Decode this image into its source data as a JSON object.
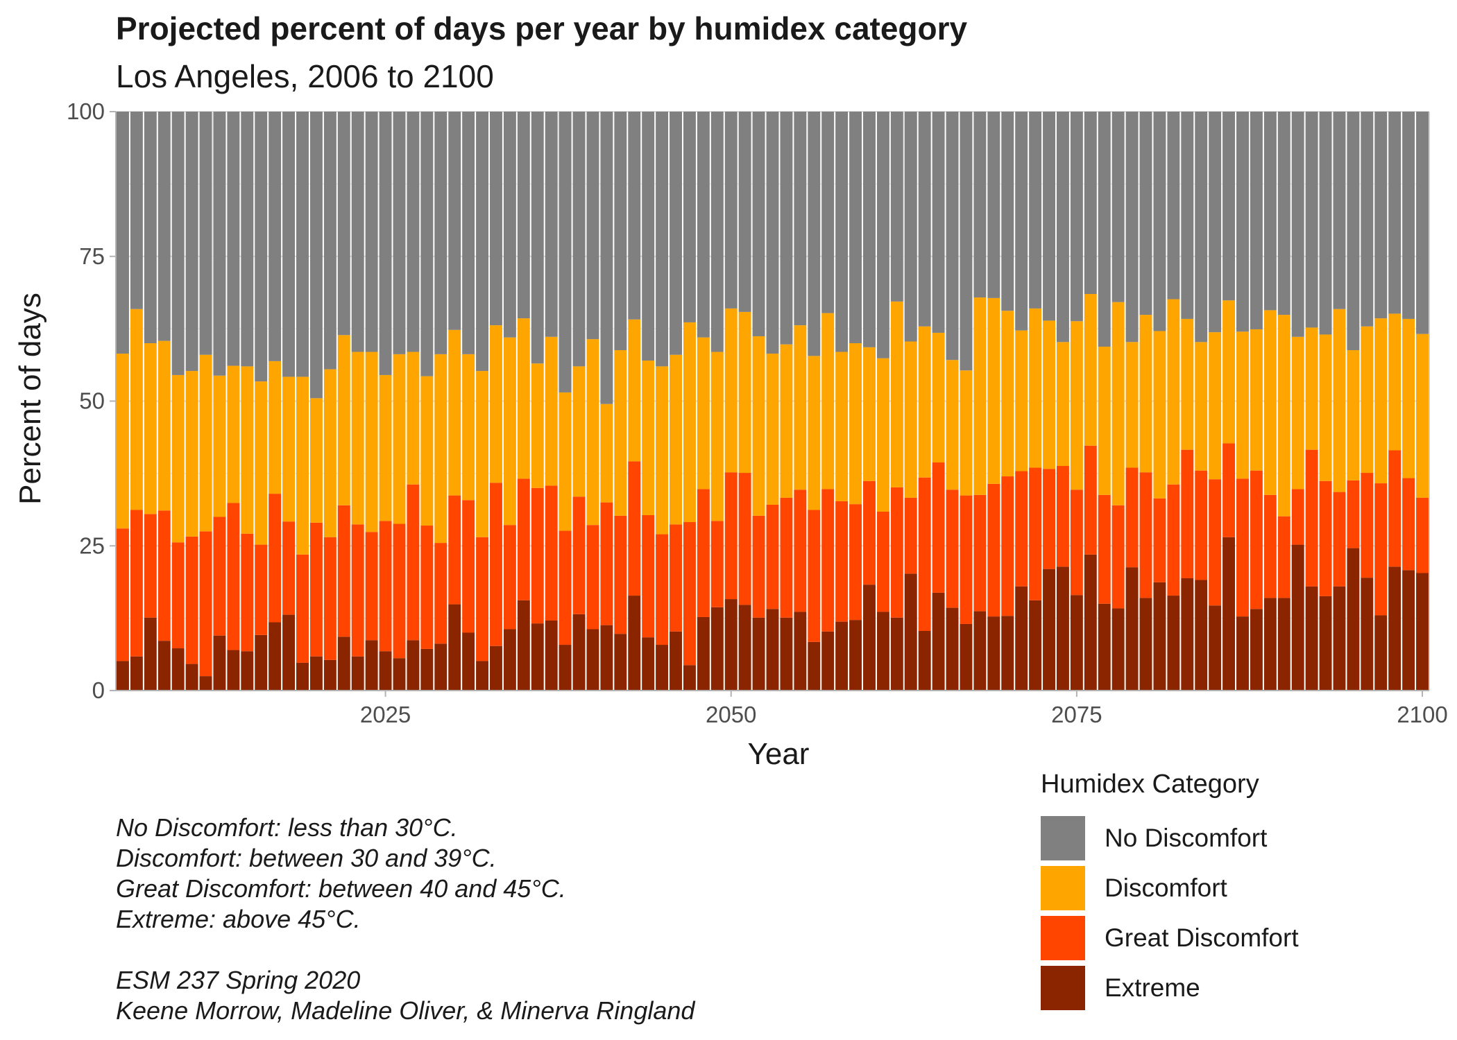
{
  "title": "Projected percent of days per year by humidex category",
  "subtitle": "Los Angeles, 2006 to 2100",
  "caption_lines": [
    "No Discomfort: less than 30°C.",
    "Discomfort: between 30 and 39°C.",
    "Great Discomfort: between 40 and 45°C.",
    "Extreme: above 45°C.",
    "",
    "ESM 237 Spring 2020",
    "Keene Morrow, Madeline Oliver, & Minerva Ringland"
  ],
  "legend": {
    "title": "Humidex Category",
    "items": [
      {
        "label": "No Discomfort",
        "color": "#808080"
      },
      {
        "label": "Discomfort",
        "color": "#ffa500"
      },
      {
        "label": "Great Discomfort",
        "color": "#ff4500"
      },
      {
        "label": "Extreme",
        "color": "#8b2500"
      }
    ]
  },
  "chart_data": {
    "type": "bar",
    "stacked": true,
    "title": "Projected percent of days per year by humidex category",
    "subtitle": "Los Angeles, 2006 to 2100",
    "xlabel": "Year",
    "ylabel": "Percent of days",
    "xlim": [
      2006,
      2100
    ],
    "ylim": [
      0,
      100
    ],
    "x_ticks": [
      2025,
      2050,
      2075,
      2100
    ],
    "y_ticks": [
      0,
      25,
      50,
      75,
      100
    ],
    "grid": true,
    "legend_position": "bottom-right",
    "x": [
      2006,
      2007,
      2008,
      2009,
      2010,
      2011,
      2012,
      2013,
      2014,
      2015,
      2016,
      2017,
      2018,
      2019,
      2020,
      2021,
      2022,
      2023,
      2024,
      2025,
      2026,
      2027,
      2028,
      2029,
      2030,
      2031,
      2032,
      2033,
      2034,
      2035,
      2036,
      2037,
      2038,
      2039,
      2040,
      2041,
      2042,
      2043,
      2044,
      2045,
      2046,
      2047,
      2048,
      2049,
      2050,
      2051,
      2052,
      2053,
      2054,
      2055,
      2056,
      2057,
      2058,
      2059,
      2060,
      2061,
      2062,
      2063,
      2064,
      2065,
      2066,
      2067,
      2068,
      2069,
      2070,
      2071,
      2072,
      2073,
      2074,
      2075,
      2076,
      2077,
      2078,
      2079,
      2080,
      2081,
      2082,
      2083,
      2084,
      2085,
      2086,
      2087,
      2088,
      2089,
      2090,
      2091,
      2092,
      2093,
      2094,
      2095,
      2096,
      2097,
      2098,
      2099,
      2100
    ],
    "cumulative_top": {
      "Extreme": [
        5.1,
        5.9,
        12.6,
        8.6,
        7.3,
        4.6,
        2.5,
        9.5,
        7.0,
        6.8,
        9.6,
        11.8,
        13.1,
        4.8,
        5.9,
        5.3,
        9.3,
        5.9,
        8.7,
        6.8,
        5.6,
        8.7,
        7.2,
        8.1,
        14.9,
        10.0,
        5.1,
        7.7,
        10.6,
        15.6,
        11.6,
        12.1,
        7.9,
        13.2,
        10.6,
        11.3,
        9.8,
        16.4,
        9.2,
        7.9,
        10.2,
        4.4,
        12.7,
        14.4,
        15.8,
        14.8,
        12.6,
        14.1,
        12.6,
        13.6,
        8.4,
        10.2,
        11.9,
        12.2,
        18.3,
        13.6,
        12.6,
        20.2,
        10.3,
        16.9,
        14.3,
        11.5,
        13.7,
        12.8,
        12.9,
        18.0,
        15.6,
        21.0,
        21.4,
        16.5,
        23.5,
        15.0,
        14.2,
        21.3,
        16.0,
        18.7,
        16.4,
        19.4,
        19.1,
        14.7,
        26.5,
        12.8,
        14.1,
        16.0,
        16.0,
        25.2,
        18.0,
        16.3,
        18.0,
        24.6,
        19.5,
        13.0,
        21.4,
        20.8,
        20.3
      ],
      "Great Discomfort": [
        28.0,
        31.2,
        30.5,
        31.1,
        25.6,
        26.6,
        27.5,
        30.0,
        32.4,
        27.1,
        25.2,
        34.0,
        29.2,
        23.5,
        29.0,
        26.5,
        32.0,
        28.7,
        27.4,
        29.3,
        28.8,
        35.6,
        28.5,
        25.5,
        33.7,
        32.9,
        26.5,
        35.9,
        28.6,
        36.6,
        35.0,
        35.4,
        27.6,
        33.5,
        28.6,
        32.5,
        30.2,
        39.6,
        30.3,
        27.0,
        28.7,
        29.1,
        34.8,
        29.3,
        37.7,
        37.6,
        30.2,
        32.1,
        33.3,
        34.7,
        31.2,
        34.8,
        32.7,
        32.2,
        36.2,
        30.9,
        35.1,
        33.3,
        36.8,
        39.4,
        34.7,
        33.7,
        33.8,
        35.7,
        37.0,
        37.9,
        38.5,
        38.3,
        38.8,
        34.7,
        42.3,
        33.8,
        32.0,
        38.5,
        37.7,
        33.2,
        35.6,
        41.6,
        38.0,
        36.5,
        42.7,
        36.6,
        38.0,
        33.8,
        30.1,
        34.8,
        41.6,
        36.2,
        34.3,
        36.3,
        37.6,
        35.8,
        41.5,
        36.7,
        33.3
      ],
      "Discomfort": [
        58.2,
        65.9,
        60.0,
        60.4,
        54.5,
        55.2,
        58.0,
        54.4,
        56.1,
        56.0,
        53.4,
        56.9,
        54.2,
        54.2,
        50.5,
        55.5,
        61.4,
        58.5,
        58.5,
        54.5,
        58.1,
        58.5,
        54.3,
        58.1,
        62.3,
        58.1,
        55.2,
        63.1,
        61.0,
        64.3,
        56.5,
        61.1,
        51.5,
        56.0,
        60.7,
        49.5,
        58.8,
        64.1,
        57.0,
        56.0,
        58.0,
        63.6,
        61.0,
        58.5,
        66.0,
        65.4,
        61.2,
        58.2,
        59.8,
        63.1,
        57.8,
        65.2,
        58.5,
        60.0,
        59.3,
        57.4,
        67.2,
        60.3,
        62.9,
        61.8,
        57.1,
        55.3,
        67.9,
        67.8,
        65.6,
        62.2,
        66.0,
        63.9,
        60.2,
        63.8,
        68.5,
        59.4,
        67.1,
        60.2,
        64.9,
        62.1,
        67.6,
        64.2,
        60.2,
        61.9,
        67.4,
        62.0,
        62.4,
        65.7,
        64.9,
        61.1,
        62.7,
        61.5,
        65.9,
        58.8,
        62.9,
        64.3,
        65.1,
        64.2,
        61.6
      ],
      "No Discomfort": [
        100,
        100,
        100,
        100,
        100,
        100,
        100,
        100,
        100,
        100,
        100,
        100,
        100,
        100,
        100,
        100,
        100,
        100,
        100,
        100,
        100,
        100,
        100,
        100,
        100,
        100,
        100,
        100,
        100,
        100,
        100,
        100,
        100,
        100,
        100,
        100,
        100,
        100,
        100,
        100,
        100,
        100,
        100,
        100,
        100,
        100,
        100,
        100,
        100,
        100,
        100,
        100,
        100,
        100,
        100,
        100,
        100,
        100,
        100,
        100,
        100,
        100,
        100,
        100,
        100,
        100,
        100,
        100,
        100,
        100,
        100,
        100,
        100,
        100,
        100,
        100,
        100,
        100,
        100,
        100,
        100,
        100,
        100,
        100,
        100,
        100,
        100,
        100,
        100,
        100,
        100,
        100,
        100,
        100,
        100
      ]
    },
    "series_order_bottom_to_top": [
      "Extreme",
      "Great Discomfort",
      "Discomfort",
      "No Discomfort"
    ]
  }
}
